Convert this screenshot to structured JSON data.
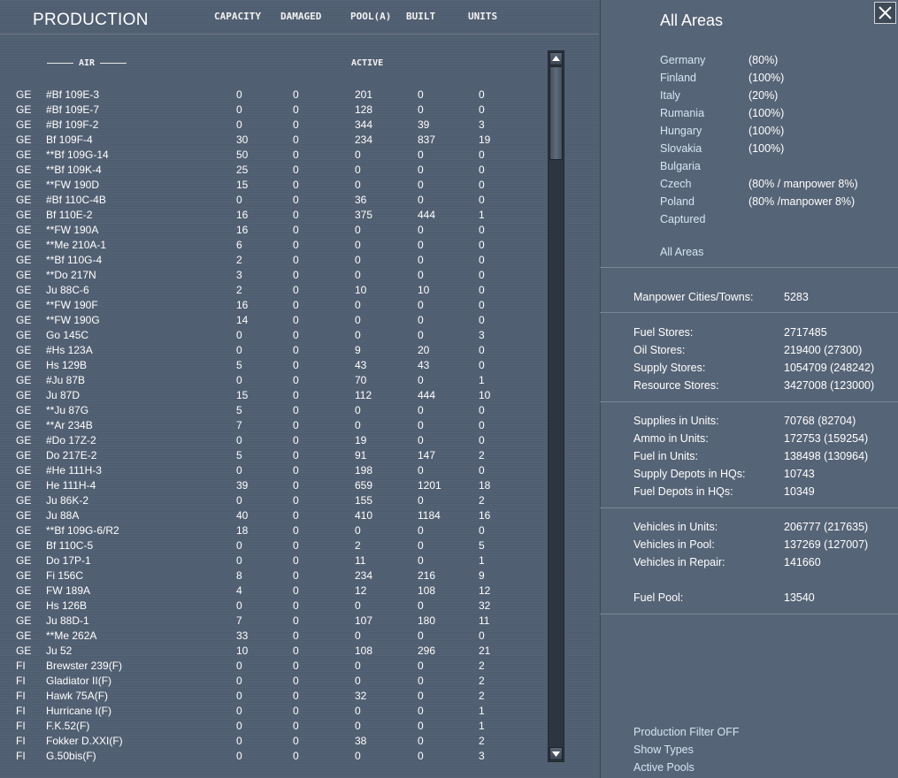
{
  "header": {
    "title": "PRODUCTION",
    "cols": {
      "capacity": "CAPACITY",
      "damaged": "DAMAGED",
      "pool": "POOL(A)",
      "built": "BUILT",
      "units": "UNITS"
    }
  },
  "section": {
    "air": "AIR",
    "active": "ACTIVE"
  },
  "rows": [
    [
      "GE",
      "#Bf 109E-3",
      "0",
      "0",
      "201",
      "0",
      "0"
    ],
    [
      "GE",
      "#Bf 109E-7",
      "0",
      "0",
      "128",
      "0",
      "0"
    ],
    [
      "GE",
      "#Bf 109F-2",
      "0",
      "0",
      "344",
      "39",
      "3"
    ],
    [
      "GE",
      "Bf 109F-4",
      "30",
      "0",
      "234",
      "837",
      "19"
    ],
    [
      "GE",
      "**Bf 109G-14",
      "50",
      "0",
      "0",
      "0",
      "0"
    ],
    [
      "GE",
      "**Bf 109K-4",
      "25",
      "0",
      "0",
      "0",
      "0"
    ],
    [
      "GE",
      "**FW 190D",
      "15",
      "0",
      "0",
      "0",
      "0"
    ],
    [
      "GE",
      "#Bf 110C-4B",
      "0",
      "0",
      "36",
      "0",
      "0"
    ],
    [
      "GE",
      "Bf 110E-2",
      "16",
      "0",
      "375",
      "444",
      "1"
    ],
    [
      "GE",
      "**FW 190A",
      "16",
      "0",
      "0",
      "0",
      "0"
    ],
    [
      "GE",
      "**Me 210A-1",
      "6",
      "0",
      "0",
      "0",
      "0"
    ],
    [
      "GE",
      "**Bf 110G-4",
      "2",
      "0",
      "0",
      "0",
      "0"
    ],
    [
      "GE",
      "**Do 217N",
      "3",
      "0",
      "0",
      "0",
      "0"
    ],
    [
      "GE",
      "Ju 88C-6",
      "2",
      "0",
      "10",
      "10",
      "0"
    ],
    [
      "GE",
      "**FW 190F",
      "16",
      "0",
      "0",
      "0",
      "0"
    ],
    [
      "GE",
      "**FW 190G",
      "14",
      "0",
      "0",
      "0",
      "0"
    ],
    [
      "GE",
      "Go 145C",
      "0",
      "0",
      "0",
      "0",
      "3"
    ],
    [
      "GE",
      "#Hs 123A",
      "0",
      "0",
      "9",
      "20",
      "0"
    ],
    [
      "GE",
      "Hs 129B",
      "5",
      "0",
      "43",
      "43",
      "0"
    ],
    [
      "GE",
      "#Ju 87B",
      "0",
      "0",
      "70",
      "0",
      "1"
    ],
    [
      "GE",
      "Ju 87D",
      "15",
      "0",
      "112",
      "444",
      "10"
    ],
    [
      "GE",
      "**Ju 87G",
      "5",
      "0",
      "0",
      "0",
      "0"
    ],
    [
      "GE",
      "**Ar 234B",
      "7",
      "0",
      "0",
      "0",
      "0"
    ],
    [
      "GE",
      "#Do 17Z-2",
      "0",
      "0",
      "19",
      "0",
      "0"
    ],
    [
      "GE",
      "Do 217E-2",
      "5",
      "0",
      "91",
      "147",
      "2"
    ],
    [
      "GE",
      "#He 111H-3",
      "0",
      "0",
      "198",
      "0",
      "0"
    ],
    [
      "GE",
      "He 111H-4",
      "39",
      "0",
      "659",
      "1201",
      "18"
    ],
    [
      "GE",
      "Ju 86K-2",
      "0",
      "0",
      "155",
      "0",
      "2"
    ],
    [
      "GE",
      "Ju 88A",
      "40",
      "0",
      "410",
      "1184",
      "16"
    ],
    [
      "GE",
      "**Bf 109G-6/R2",
      "18",
      "0",
      "0",
      "0",
      "0"
    ],
    [
      "GE",
      "Bf 110C-5",
      "0",
      "0",
      "2",
      "0",
      "5"
    ],
    [
      "GE",
      "Do 17P-1",
      "0",
      "0",
      "11",
      "0",
      "1"
    ],
    [
      "GE",
      "Fi 156C",
      "8",
      "0",
      "234",
      "216",
      "9"
    ],
    [
      "GE",
      "FW 189A",
      "4",
      "0",
      "12",
      "108",
      "12"
    ],
    [
      "GE",
      "Hs 126B",
      "0",
      "0",
      "0",
      "0",
      "32"
    ],
    [
      "GE",
      "Ju 88D-1",
      "7",
      "0",
      "107",
      "180",
      "11"
    ],
    [
      "GE",
      "**Me 262A",
      "33",
      "0",
      "0",
      "0",
      "0"
    ],
    [
      "GE",
      "Ju 52",
      "10",
      "0",
      "108",
      "296",
      "21"
    ],
    [
      "FI",
      "Brewster 239(F)",
      "0",
      "0",
      "0",
      "0",
      "2"
    ],
    [
      "FI",
      "Gladiator II(F)",
      "0",
      "0",
      "0",
      "0",
      "2"
    ],
    [
      "FI",
      "Hawk 75A(F)",
      "0",
      "0",
      "32",
      "0",
      "2"
    ],
    [
      "FI",
      "Hurricane I(F)",
      "0",
      "0",
      "0",
      "0",
      "1"
    ],
    [
      "FI",
      "F.K.52(F)",
      "0",
      "0",
      "0",
      "0",
      "1"
    ],
    [
      "FI",
      "Fokker D.XXI(F)",
      "0",
      "0",
      "38",
      "0",
      "2"
    ],
    [
      "FI",
      "G.50bis(F)",
      "0",
      "0",
      "0",
      "0",
      "3"
    ]
  ],
  "right": {
    "title": "All Areas",
    "areas": [
      {
        "name": "Germany",
        "pct": "(80%)"
      },
      {
        "name": "Finland",
        "pct": "(100%)"
      },
      {
        "name": "Italy",
        "pct": "(20%)"
      },
      {
        "name": "Rumania",
        "pct": "(100%)"
      },
      {
        "name": "Hungary",
        "pct": "(100%)"
      },
      {
        "name": "Slovakia",
        "pct": "(100%)"
      },
      {
        "name": "Bulgaria",
        "pct": ""
      },
      {
        "name": "Czech",
        "pct": "(80% / manpower 8%)"
      },
      {
        "name": "Poland",
        "pct": "(80% /manpower 8%)"
      },
      {
        "name": "Captured",
        "pct": ""
      }
    ],
    "all_areas_link": "All Areas",
    "manpower": {
      "label": "Manpower Cities/Towns:",
      "value": "5283"
    },
    "stores": [
      {
        "label": "Fuel Stores:",
        "value": "2717485"
      },
      {
        "label": "Oil Stores:",
        "value": "219400 (27300)"
      },
      {
        "label": "Supply Stores:",
        "value": "1054709 (248242)"
      },
      {
        "label": "Resource Stores:",
        "value": "3427008 (123000)"
      }
    ],
    "units": [
      {
        "label": "Supplies in Units:",
        "value": "70768 (82704)"
      },
      {
        "label": "Ammo in Units:",
        "value": "172753 (159254)"
      },
      {
        "label": "Fuel in Units:",
        "value": "138498 (130964)"
      },
      {
        "label": "Supply Depots in HQs:",
        "value": "10743"
      },
      {
        "label": "Fuel Depots in HQs:",
        "value": "10349"
      }
    ],
    "vehicles": [
      {
        "label": "Vehicles in Units:",
        "value": "206777 (217635)"
      },
      {
        "label": "Vehicles in Pool:",
        "value": "137269 (127007)"
      },
      {
        "label": "Vehicles in Repair:",
        "value": "141660"
      }
    ],
    "fuel_pool": {
      "label": "Fuel Pool:",
      "value": "13540"
    },
    "footer": {
      "filter": "Production Filter OFF",
      "types": "Show Types",
      "pools": "Active Pools"
    }
  }
}
